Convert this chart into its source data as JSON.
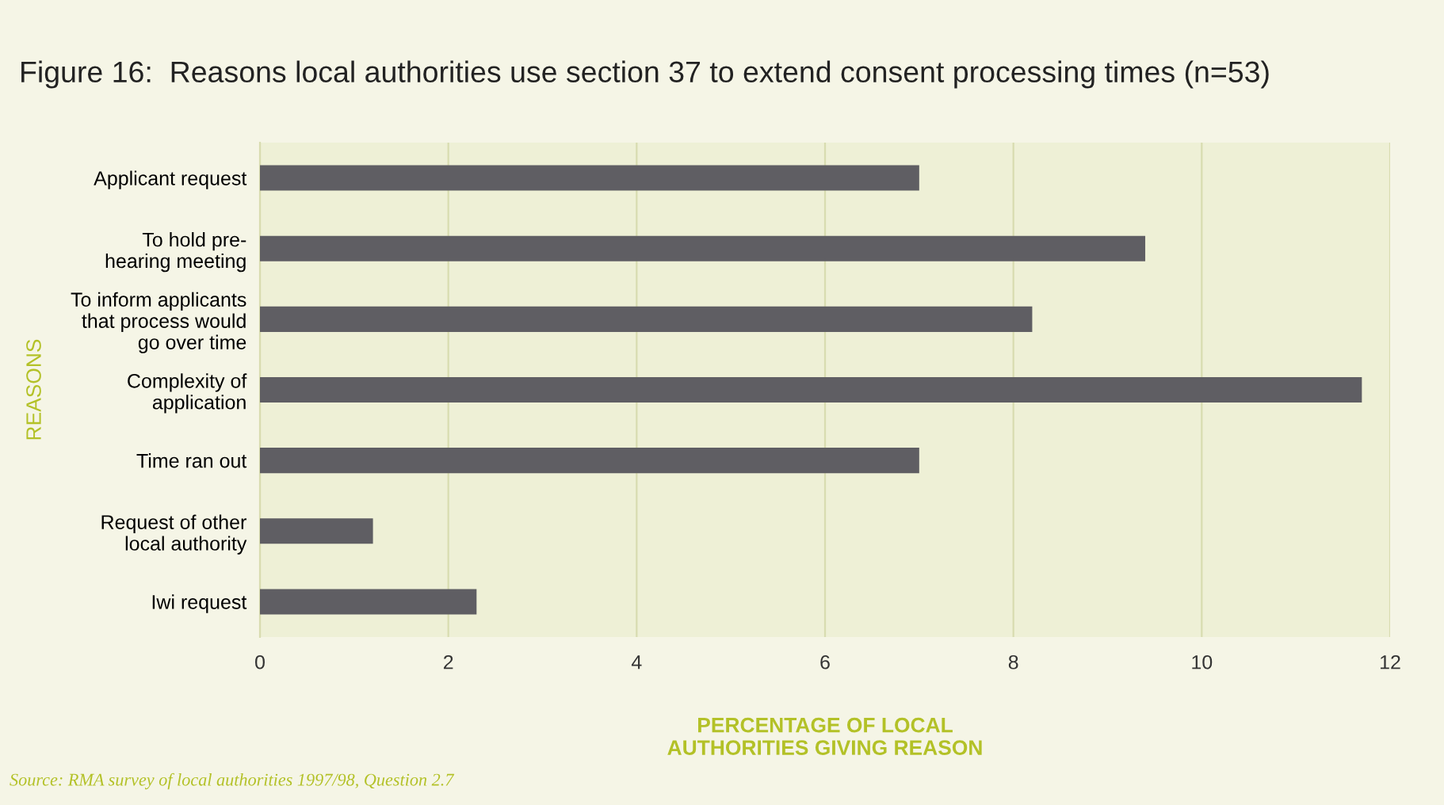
{
  "chart_data": {
    "type": "bar",
    "orientation": "horizontal",
    "title": "Figure 16:  Reasons local authorities use section 37 to extend consent processing times (n=53)",
    "categories": [
      "Applicant request",
      "To hold pre-\nhearing meeting",
      "To inform applicants\nthat process would\ngo over time",
      "Complexity of\napplication",
      "Time ran out",
      "Request of other\nlocal authority",
      "Iwi request"
    ],
    "values": [
      7.0,
      9.4,
      8.2,
      11.7,
      7.0,
      1.2,
      2.3
    ],
    "color": "#5f5e63",
    "xlim": [
      0,
      12
    ],
    "xticks": [
      0,
      2,
      4,
      6,
      8,
      10,
      12
    ],
    "xlabel": "PERCENTAGE OF LOCAL\nAUTHORITIES GIVING REASON",
    "ylabel": "REASONS",
    "grid": "x",
    "annotations": [
      "Source: RMA survey of local authorities 1997/98, Question 2.7"
    ]
  }
}
